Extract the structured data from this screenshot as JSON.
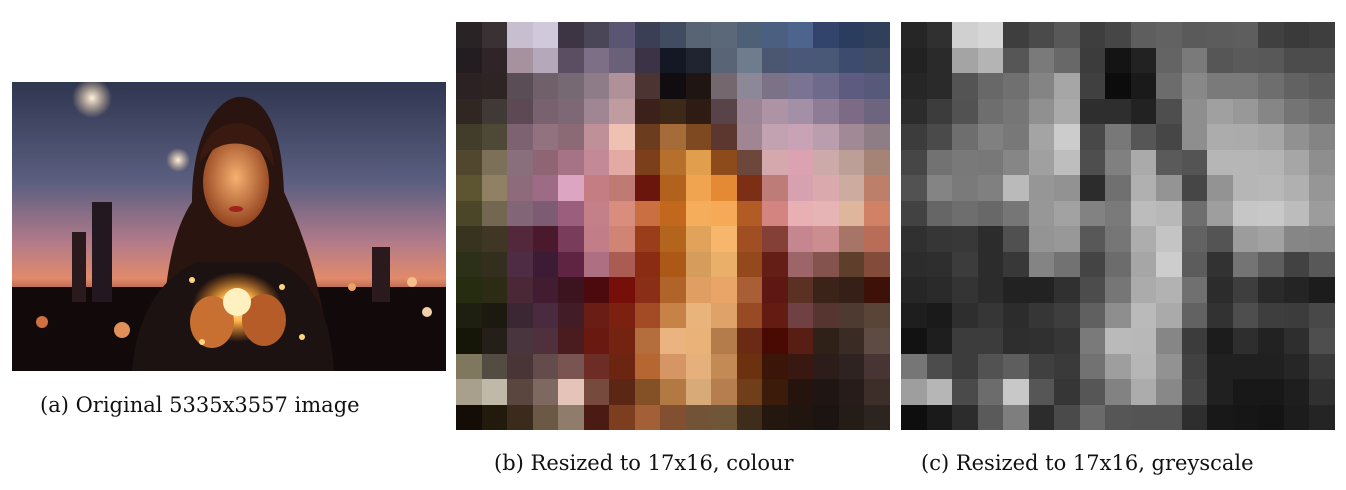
{
  "captions": {
    "a": "(a) Original 5335x3557 image",
    "b": "(b) Resized to 17x16, colour",
    "c": "(c) Resized to 17x16, greyscale"
  },
  "colour_grid": [
    [
      "#2a2326",
      "#3a3135",
      "#c7bfd0",
      "#d0c8db",
      "#3d3444",
      "#4b4558",
      "#5a5572",
      "#3a3f55",
      "#414b62",
      "#586374",
      "#5b6878",
      "#4e6076",
      "#4b6080",
      "#4d648d",
      "#32446c",
      "#2a3d5e",
      "#30405a"
    ],
    [
      "#231d21",
      "#2f2428",
      "#a6929f",
      "#b6a8bb",
      "#5b4e62",
      "#7d6f85",
      "#6a6178",
      "#3d3346",
      "#141825",
      "#202431",
      "#596577",
      "#6e7c8e",
      "#4b5670",
      "#4a5779",
      "#4a5878",
      "#3d4c6e",
      "#404b66"
    ],
    [
      "#2c2223",
      "#2e2424",
      "#5b4d55",
      "#6f6069",
      "#776974",
      "#8f7c89",
      "#b09099",
      "#4c3433",
      "#110c0f",
      "#1f1614",
      "#74676e",
      "#8d8897",
      "#7c7288",
      "#7a7392",
      "#6d6a8b",
      "#5d5c80",
      "#56597a"
    ],
    [
      "#302622",
      "#3f3a35",
      "#5c4954",
      "#78626f",
      "#7f6875",
      "#a08593",
      "#c09ba0",
      "#3c201c",
      "#3e2918",
      "#2e1c14",
      "#584348",
      "#9b8595",
      "#ad93a4",
      "#a490a6",
      "#8e7c97",
      "#7d6b86",
      "#6d647f"
    ],
    [
      "#423c2a",
      "#4e4836",
      "#7d6271",
      "#91727e",
      "#8b6a76",
      "#c09099",
      "#efc1b2",
      "#6b3c1d",
      "#a56b38",
      "#7e4920",
      "#5c3730",
      "#a08592",
      "#c2a1b1",
      "#c7a3b5",
      "#bb9eae",
      "#a28996",
      "#8f7d86"
    ],
    [
      "#51462e",
      "#7c7158",
      "#896f7b",
      "#8f6573",
      "#a57385",
      "#c48996",
      "#e2aaa2",
      "#7b3f1c",
      "#b6702c",
      "#e19f4e",
      "#8d4a1b",
      "#6d473c",
      "#d5a8ad",
      "#dba3b1",
      "#ccaaaa",
      "#bc9f97",
      "#a58476"
    ],
    [
      "#5d5532",
      "#908064",
      "#8d6b7b",
      "#9e6b86",
      "#dca6c2",
      "#c37d83",
      "#be7a73",
      "#6b160c",
      "#b3621e",
      "#f1a44f",
      "#e48a34",
      "#7d2f16",
      "#be7c79",
      "#d8a1b0",
      "#d9a9ae",
      "#ccac9e",
      "#bd7f69"
    ],
    [
      "#4c4629",
      "#746751",
      "#826576",
      "#7b5c72",
      "#9b5e7d",
      "#c38089",
      "#d98d7c",
      "#c96f40",
      "#c1681d",
      "#f5ad5c",
      "#f6aa58",
      "#b25b24",
      "#d38480",
      "#e9b0b4",
      "#e7b4b5",
      "#deb69c",
      "#d18266"
    ],
    [
      "#37331f",
      "#403624",
      "#53283a",
      "#4a1a2c",
      "#7a3c5b",
      "#c17e89",
      "#d18374",
      "#9a3d1a",
      "#b3651e",
      "#e1a25a",
      "#f6b76c",
      "#a14e23",
      "#844036",
      "#c68690",
      "#cc8d91",
      "#a67567",
      "#b96c58"
    ],
    [
      "#2d3018",
      "#332e1e",
      "#4d2c44",
      "#3c1c35",
      "#5f2442",
      "#af6f82",
      "#aa5c52",
      "#8a2c14",
      "#ac5918",
      "#d69c5b",
      "#eab06a",
      "#94491d",
      "#651e16",
      "#9c6568",
      "#84534d",
      "#5e3f2b",
      "#824b3a"
    ],
    [
      "#252c10",
      "#2c2c15",
      "#4a2836",
      "#421c31",
      "#3b1420",
      "#4c0a0f",
      "#760e0a",
      "#8b2e17",
      "#b0642a",
      "#e19e63",
      "#e8a567",
      "#a95e36",
      "#5e1712",
      "#5b3124",
      "#3b231a",
      "#351f16",
      "#3e1108"
    ],
    [
      "#1f1f11",
      "#1c1a10",
      "#3b2634",
      "#4a2a3f",
      "#421c27",
      "#691d15",
      "#7c2010",
      "#a24b24",
      "#c78248",
      "#e8b47b",
      "#dfa269",
      "#974a24",
      "#631b12",
      "#6f4142",
      "#563531",
      "#4d3a31",
      "#5a4438"
    ],
    [
      "#151508",
      "#241f18",
      "#49353e",
      "#50303c",
      "#4a1c20",
      "#6a1910",
      "#742311",
      "#b46e3e",
      "#eab380",
      "#eab279",
      "#b57c4b",
      "#6b2a13",
      "#4a0a04",
      "#581e14",
      "#2f2018",
      "#3a2c25",
      "#5d4b44"
    ],
    [
      "#7f775e",
      "#534c42",
      "#4a3536",
      "#644b4c",
      "#7a5451",
      "#6d2c25",
      "#6b2510",
      "#b56631",
      "#d69564",
      "#e5b07c",
      "#c38a55",
      "#6c3210",
      "#3b1608",
      "#3a1812",
      "#2d1d1a",
      "#2f2322",
      "#483533"
    ],
    [
      "#a8a08d",
      "#c0b8a8",
      "#5a463e",
      "#7e6961",
      "#e4c3b8",
      "#774a3e",
      "#5b2613",
      "#845025",
      "#b27942",
      "#d8aa78",
      "#b67e4e",
      "#703e18",
      "#3b1c0b",
      "#25140d",
      "#1f1613",
      "#271c1a",
      "#3d2e2a"
    ],
    [
      "#140c07",
      "#231a0e",
      "#3b2b1c",
      "#6b5945",
      "#8f7c6b",
      "#4a1b12",
      "#7d3e20",
      "#a35f35",
      "#824f30",
      "#725338",
      "#6f5639",
      "#3f2c1a",
      "#23170e",
      "#20150f",
      "#1b1410",
      "#231c17",
      "#2b241f"
    ]
  ],
  "grey_grid": [
    [
      "#262626",
      "#303030",
      "#d0d0d0",
      "#d6d6d6",
      "#3e3e3e",
      "#4a4a4a",
      "#585858",
      "#3e3e3e",
      "#464646",
      "#5e5e5e",
      "#626262",
      "#5a5a5a",
      "#5c5c5c",
      "#5e5e5e",
      "#404040",
      "#3a3a3a",
      "#3e3e3e"
    ],
    [
      "#222222",
      "#2a2a2a",
      "#a4a4a4",
      "#b4b4b4",
      "#565656",
      "#7a7a7a",
      "#686868",
      "#3c3c3c",
      "#141414",
      "#222222",
      "#646464",
      "#7a7a7a",
      "#565656",
      "#5a5a5a",
      "#585858",
      "#4c4c4c",
      "#4c4c4c"
    ],
    [
      "#262626",
      "#2a2a2a",
      "#545454",
      "#686868",
      "#707070",
      "#848484",
      "#a6a6a6",
      "#404040",
      "#0c0c0c",
      "#1a1a1a",
      "#6c6c6c",
      "#888888",
      "#7a7a7a",
      "#7a7a7a",
      "#6e6e6e",
      "#626262",
      "#5c5c5c"
    ],
    [
      "#2c2c2c",
      "#3c3c3c",
      "#525252",
      "#6e6e6e",
      "#767676",
      "#909090",
      "#aaaaaa",
      "#2e2e2e",
      "#2e2e2e",
      "#222222",
      "#4e4e4e",
      "#8e8e8e",
      "#a0a0a0",
      "#989898",
      "#868686",
      "#747474",
      "#6c6c6c"
    ],
    [
      "#3c3c3c",
      "#4a4a4a",
      "#6e6e6e",
      "#808080",
      "#787878",
      "#a4a4a4",
      "#cccccc",
      "#484848",
      "#787878",
      "#565656",
      "#464646",
      "#8e8e8e",
      "#acacac",
      "#ababab",
      "#a6a6a6",
      "#919191",
      "#848484"
    ],
    [
      "#464646",
      "#727272",
      "#797979",
      "#787878",
      "#868686",
      "#a0a0a0",
      "#bebebe",
      "#4e4e4e",
      "#808080",
      "#aaaaaa",
      "#5a5a5a",
      "#545454",
      "#b6b6b6",
      "#b6b6b6",
      "#b4b4b4",
      "#a6a6a6",
      "#8e8e8e"
    ],
    [
      "#525252",
      "#848484",
      "#7a7a7a",
      "#808080",
      "#bababa",
      "#969696",
      "#929292",
      "#2c2c2c",
      "#707070",
      "#b0b0b0",
      "#949494",
      "#464646",
      "#939393",
      "#b6b6b6",
      "#b8b8b8",
      "#b0b0b0",
      "#969696"
    ],
    [
      "#424242",
      "#666666",
      "#6e6e6e",
      "#686868",
      "#767676",
      "#979797",
      "#a2a2a2",
      "#828282",
      "#7a7a7a",
      "#bcbcbc",
      "#b8b8b8",
      "#6e6e6e",
      "#9e9e9e",
      "#c6c6c6",
      "#c8c8c8",
      "#bcbcbc",
      "#9c9c9c"
    ],
    [
      "#303030",
      "#363636",
      "#383838",
      "#2c2c2c",
      "#505050",
      "#949494",
      "#989898",
      "#585858",
      "#767676",
      "#adadad",
      "#c4c4c4",
      "#626262",
      "#545454",
      "#9c9c9c",
      "#a2a2a2",
      "#868686",
      "#848484"
    ],
    [
      "#2c2c2c",
      "#2e2e2e",
      "#3c3c3c",
      "#2c2c2c",
      "#383838",
      "#848484",
      "#727272",
      "#444444",
      "#6c6c6c",
      "#a6a6a6",
      "#babababa",
      "#5c5c5c",
      "#323232",
      "#747474",
      "#5e5e5e",
      "#424242",
      "#585858"
    ],
    [
      "#262626",
      "#2a2a2a",
      "#343434",
      "#2c2c2c",
      "#222222",
      "#222222",
      "#303030",
      "#4c4c4c",
      "#767676",
      "#ababab",
      "#b2b2b2",
      "#707070",
      "#2c2c2c",
      "#3e3e3e",
      "#2a2a2a",
      "#242424",
      "#1c1c1c"
    ],
    [
      "#1e1e1e",
      "#1a1a1a",
      "#2e2e2e",
      "#363636",
      "#2c2c2c",
      "#363636",
      "#3e3e3e",
      "#606060",
      "#8e8e8e",
      "#bababa",
      "#aaaaaa",
      "#626262",
      "#323232",
      "#4e4e4e",
      "#3e3e3e",
      "#3c3c3c",
      "#484848"
    ],
    [
      "#121212",
      "#1e1e1e",
      "#3c3c3c",
      "#3c3c3c",
      "#2e2e2e",
      "#303030",
      "#363636",
      "#7a7a7a",
      "#bababa",
      "#b8b8b8",
      "#868686",
      "#3c3c3c",
      "#1c1c1c",
      "#2e2e2e",
      "#222222",
      "#2e2e2e",
      "#4e4e4e"
    ],
    [
      "#767676",
      "#4c4c4c",
      "#3c3c3c",
      "#525252",
      "#5e5e5e",
      "#404040",
      "#3a3a3a",
      "#727272",
      "#9e9e9e",
      "#b6b6b6",
      "#929292",
      "#424242",
      "#202020",
      "#202020",
      "#202020",
      "#262626",
      "#3a3a3a"
    ],
    [
      "#9e9e9e",
      "#b6b6b6",
      "#4a4a4a",
      "#6c6c6c",
      "#c8c8c8",
      "#565656",
      "#363636",
      "#565656",
      "#828282",
      "#acacac",
      "#888888",
      "#464646",
      "#202020",
      "#181818",
      "#181818",
      "#1e1e1e",
      "#303030"
    ],
    [
      "#0e0e0e",
      "#1a1a1a",
      "#2c2c2c",
      "#5a5a5a",
      "#7e7e7e",
      "#2c2c2c",
      "#4a4a4a",
      "#6a6a6a",
      "#565656",
      "#545454",
      "#545454",
      "#2e2e2e",
      "#181818",
      "#161616",
      "#141414",
      "#1c1c1c",
      "#242424"
    ]
  ]
}
